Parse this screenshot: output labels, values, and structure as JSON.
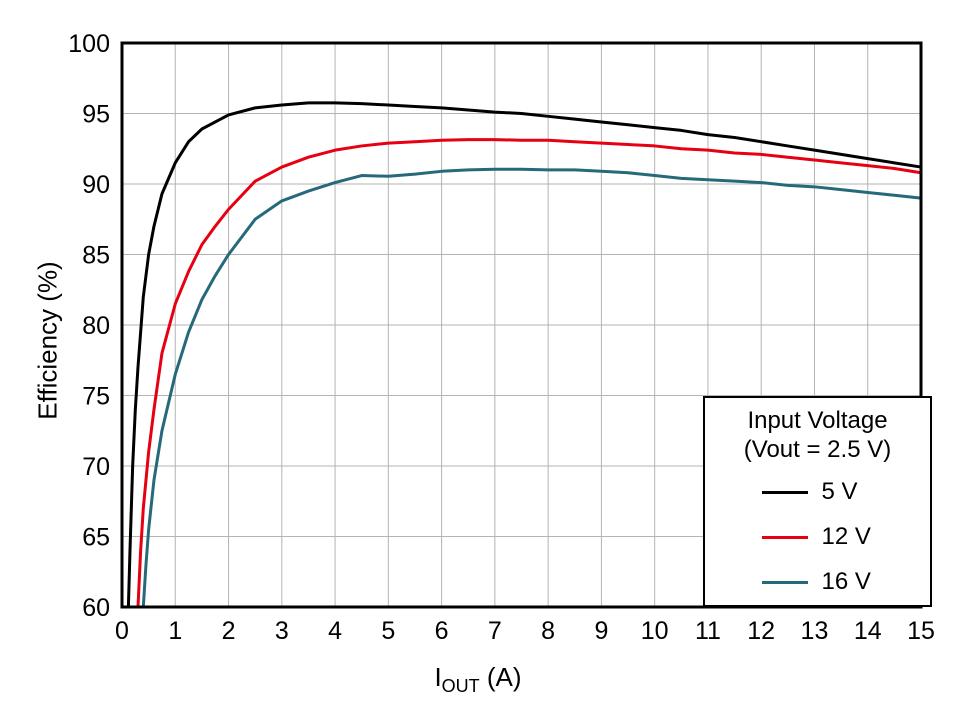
{
  "chart_data": {
    "type": "line",
    "title": "",
    "ylabel": "Efficiency (%)",
    "xlabel": {
      "main": "I",
      "sub": "OUT",
      "unit": " (A)"
    },
    "xlim": [
      0,
      15
    ],
    "ylim": [
      60,
      100
    ],
    "x_ticks": [
      0,
      1,
      2,
      3,
      4,
      5,
      6,
      7,
      8,
      9,
      10,
      11,
      12,
      13,
      14,
      15
    ],
    "y_ticks": [
      60,
      65,
      70,
      75,
      80,
      85,
      90,
      95,
      100
    ],
    "grid": true,
    "grid_color": "#b3b3b3",
    "frame_color": "#000000",
    "legend": {
      "title_line1": "Input Voltage",
      "title_line2": "(Vout = 2.5 V)",
      "position": "bottom-right"
    },
    "series": [
      {
        "name": "5 V",
        "color": "#000000",
        "points": [
          [
            0.12,
            60
          ],
          [
            0.15,
            64
          ],
          [
            0.2,
            70
          ],
          [
            0.25,
            74
          ],
          [
            0.3,
            77
          ],
          [
            0.4,
            82
          ],
          [
            0.5,
            85
          ],
          [
            0.6,
            87
          ],
          [
            0.75,
            89.3
          ],
          [
            1,
            91.5
          ],
          [
            1.25,
            93
          ],
          [
            1.5,
            93.9
          ],
          [
            2,
            94.9
          ],
          [
            2.5,
            95.4
          ],
          [
            3,
            95.6
          ],
          [
            3.5,
            95.75
          ],
          [
            4,
            95.75
          ],
          [
            4.5,
            95.7
          ],
          [
            5,
            95.6
          ],
          [
            5.5,
            95.5
          ],
          [
            6,
            95.4
          ],
          [
            6.5,
            95.25
          ],
          [
            7,
            95.1
          ],
          [
            7.5,
            95.0
          ],
          [
            8,
            94.8
          ],
          [
            8.5,
            94.6
          ],
          [
            9,
            94.4
          ],
          [
            9.5,
            94.2
          ],
          [
            10,
            94.0
          ],
          [
            10.5,
            93.8
          ],
          [
            11,
            93.5
          ],
          [
            11.5,
            93.3
          ],
          [
            12,
            93.0
          ],
          [
            12.5,
            92.7
          ],
          [
            13,
            92.4
          ],
          [
            13.5,
            92.1
          ],
          [
            14,
            91.8
          ],
          [
            14.5,
            91.5
          ],
          [
            15,
            91.2
          ]
        ]
      },
      {
        "name": "12 V",
        "color": "#e60012",
        "points": [
          [
            0.3,
            60
          ],
          [
            0.35,
            64
          ],
          [
            0.4,
            67
          ],
          [
            0.5,
            71
          ],
          [
            0.6,
            74
          ],
          [
            0.75,
            78
          ],
          [
            1,
            81.5
          ],
          [
            1.25,
            83.8
          ],
          [
            1.5,
            85.7
          ],
          [
            1.75,
            87
          ],
          [
            2,
            88.2
          ],
          [
            2.5,
            90.2
          ],
          [
            3,
            91.2
          ],
          [
            3.5,
            91.9
          ],
          [
            4,
            92.4
          ],
          [
            4.5,
            92.7
          ],
          [
            5,
            92.9
          ],
          [
            5.5,
            93.0
          ],
          [
            6,
            93.1
          ],
          [
            6.5,
            93.15
          ],
          [
            7,
            93.15
          ],
          [
            7.5,
            93.1
          ],
          [
            8,
            93.1
          ],
          [
            8.5,
            93.0
          ],
          [
            9,
            92.9
          ],
          [
            9.5,
            92.8
          ],
          [
            10,
            92.7
          ],
          [
            10.5,
            92.5
          ],
          [
            11,
            92.4
          ],
          [
            11.5,
            92.2
          ],
          [
            12,
            92.1
          ],
          [
            12.5,
            91.9
          ],
          [
            13,
            91.7
          ],
          [
            13.5,
            91.5
          ],
          [
            14,
            91.3
          ],
          [
            14.5,
            91.1
          ],
          [
            15,
            90.8
          ]
        ]
      },
      {
        "name": "16 V",
        "color": "#26697a",
        "points": [
          [
            0.4,
            60
          ],
          [
            0.45,
            63
          ],
          [
            0.5,
            65.5
          ],
          [
            0.6,
            69
          ],
          [
            0.75,
            72.5
          ],
          [
            1,
            76.5
          ],
          [
            1.25,
            79.5
          ],
          [
            1.5,
            81.8
          ],
          [
            1.75,
            83.5
          ],
          [
            2,
            85
          ],
          [
            2.5,
            87.5
          ],
          [
            3,
            88.8
          ],
          [
            3.5,
            89.5
          ],
          [
            4,
            90.1
          ],
          [
            4.5,
            90.6
          ],
          [
            5,
            90.55
          ],
          [
            5.5,
            90.7
          ],
          [
            6,
            90.9
          ],
          [
            6.5,
            91.0
          ],
          [
            7,
            91.05
          ],
          [
            7.5,
            91.05
          ],
          [
            8,
            91.0
          ],
          [
            8.5,
            91.0
          ],
          [
            9,
            90.9
          ],
          [
            9.5,
            90.8
          ],
          [
            10,
            90.6
          ],
          [
            10.5,
            90.4
          ],
          [
            11,
            90.3
          ],
          [
            11.5,
            90.2
          ],
          [
            12,
            90.1
          ],
          [
            12.5,
            89.9
          ],
          [
            13,
            89.8
          ],
          [
            13.5,
            89.6
          ],
          [
            14,
            89.4
          ],
          [
            14.5,
            89.2
          ],
          [
            15,
            89.0
          ]
        ]
      }
    ]
  }
}
